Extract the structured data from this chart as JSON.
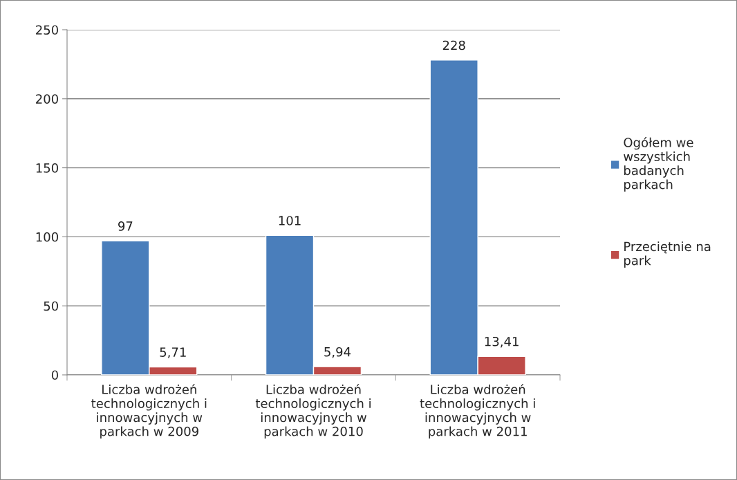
{
  "chart_data": {
    "type": "bar",
    "categories": [
      "Liczba wdrożeń\ntechnologicznych i\ninnowacyjnych w\nparkach w 2009",
      "Liczba wdrożeń\ntechnologicznych i\ninnowacyjnych w\nparkach w 2010",
      "Liczba wdrożeń\ntechnologicznych i\ninnowacyjnych w\nparkach w 2011"
    ],
    "series": [
      {
        "name": "Ogółem we\nwszystkich\nbadanych\nparkach",
        "color": "#4a7ebb",
        "values": [
          97,
          101,
          228
        ],
        "value_labels": [
          "97",
          "101",
          "228"
        ]
      },
      {
        "name": "Przeciętnie na\npark",
        "color": "#be4b48",
        "values": [
          5.71,
          5.94,
          13.41
        ],
        "value_labels": [
          "5,71",
          "5,94",
          "13,41"
        ]
      }
    ],
    "ylim": [
      0,
      250
    ],
    "yticks": [
      0,
      50,
      100,
      150,
      200,
      250
    ],
    "grid": "y",
    "legend": "right"
  }
}
